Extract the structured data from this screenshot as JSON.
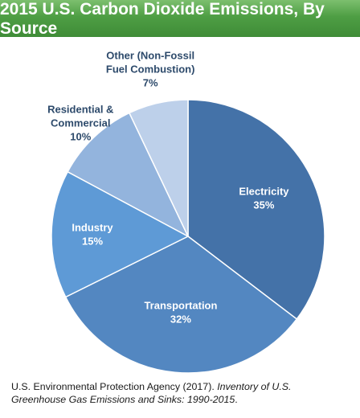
{
  "title": "2015 U.S. Carbon Dioxide Emissions, By Source",
  "chart_data": {
    "type": "pie",
    "title": "2015 U.S. Carbon Dioxide Emissions, By Source",
    "slices": [
      {
        "name": "Electricity",
        "label_lines": [
          "Electricity"
        ],
        "value": 35,
        "value_label": "35%",
        "color": "#4472a8",
        "label_color": "#ffffff"
      },
      {
        "name": "Transportation",
        "label_lines": [
          "Transportation"
        ],
        "value": 32,
        "value_label": "32%",
        "color": "#5387c1",
        "label_color": "#ffffff"
      },
      {
        "name": "Industry",
        "label_lines": [
          "Industry"
        ],
        "value": 15,
        "value_label": "15%",
        "color": "#5e9ad6",
        "label_color": "#ffffff"
      },
      {
        "name": "Residential & Commercial",
        "label_lines": [
          "Residential &",
          "Commercial"
        ],
        "value": 10,
        "value_label": "10%",
        "color": "#93b4dd",
        "label_color": "#2d4a6b"
      },
      {
        "name": "Other (Non-Fossil Fuel Combustion)",
        "label_lines": [
          "Other (Non-Fossil",
          "Fuel Combustion)"
        ],
        "value": 7,
        "value_label": "7%",
        "color": "#bdd0ea",
        "label_color": "#2d4a6b"
      }
    ]
  },
  "source": {
    "text": "U.S. Environmental Protection Agency (2017). ",
    "italic": "Inventory of U.S. Greenhouse Gas Emissions and Sinks: 1990-2015",
    "end": "."
  }
}
